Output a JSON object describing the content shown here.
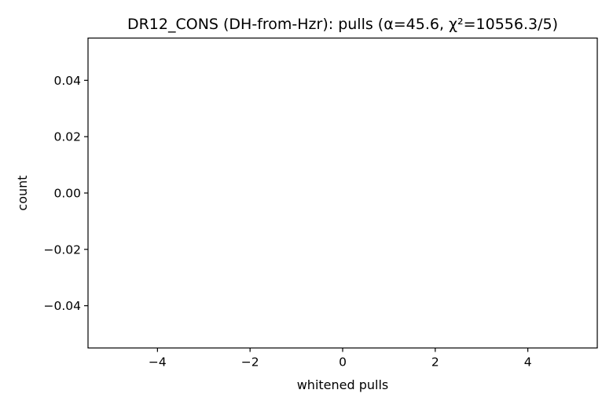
{
  "chart_data": {
    "type": "bar",
    "title": "DR12_CONS (DH-from-Hzr): pulls (α=45.6, χ²=10556.3/5)",
    "xlabel": "whitened pulls",
    "ylabel": "count",
    "xlim": [
      -5.5,
      5.5
    ],
    "ylim": [
      -0.055,
      0.055
    ],
    "xticks": [
      -4,
      -2,
      0,
      2,
      4
    ],
    "xtick_labels": [
      "−4",
      "−2",
      "0",
      "2",
      "4"
    ],
    "yticks": [
      0.04,
      0.02,
      0.0,
      -0.02,
      -0.04
    ],
    "ytick_labels": [
      "0.04",
      "0.02",
      "0.00",
      "−0.02",
      "−0.04"
    ],
    "bins": [],
    "counts": [],
    "grid": false,
    "legend": "none"
  }
}
